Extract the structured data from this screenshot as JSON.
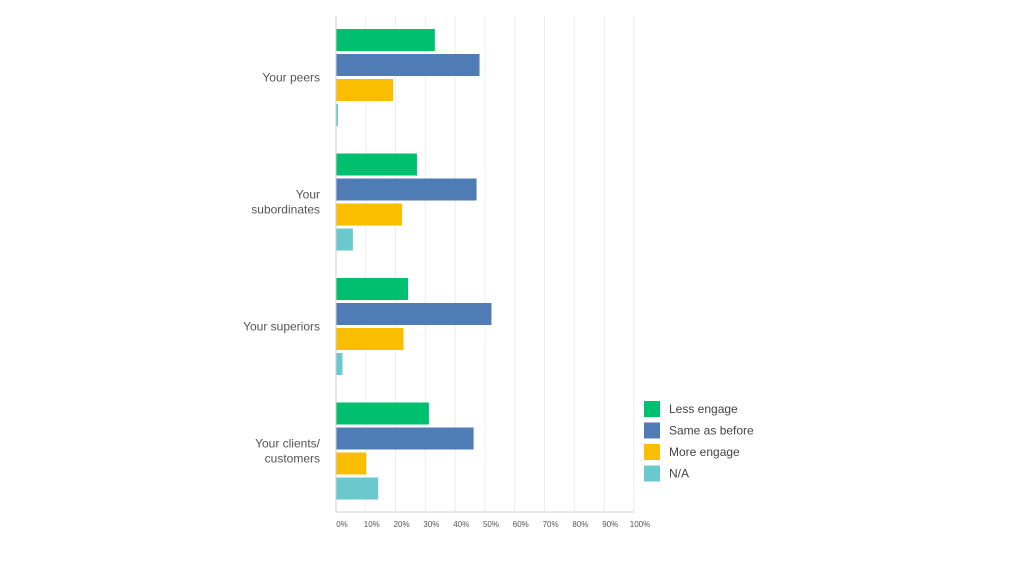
{
  "chart_data": {
    "type": "bar",
    "orientation": "horizontal",
    "categories": [
      [
        "Your peers"
      ],
      [
        "Your",
        "subordinates"
      ],
      [
        "Your superiors"
      ],
      [
        "Your clients/",
        "customers"
      ]
    ],
    "series": [
      {
        "name": "Less engage",
        "color": "#00bf6f",
        "values": [
          33,
          27,
          24,
          31
        ]
      },
      {
        "name": "Same as before",
        "color": "#507cb6",
        "values": [
          48,
          47,
          52,
          46
        ]
      },
      {
        "name": "More engage",
        "color": "#f9be00",
        "values": [
          19,
          22,
          22.5,
          10
        ]
      },
      {
        "name": "N/A",
        "color": "#6bc8cd",
        "values": [
          0.5,
          5.5,
          2,
          14
        ]
      }
    ],
    "xlim": [
      0,
      100
    ],
    "xticks": [
      "0%",
      "10%",
      "20%",
      "30%",
      "40%",
      "50%",
      "60%",
      "70%",
      "80%",
      "90%",
      "100%"
    ],
    "grid": true,
    "legend_position": "bottom-right"
  }
}
